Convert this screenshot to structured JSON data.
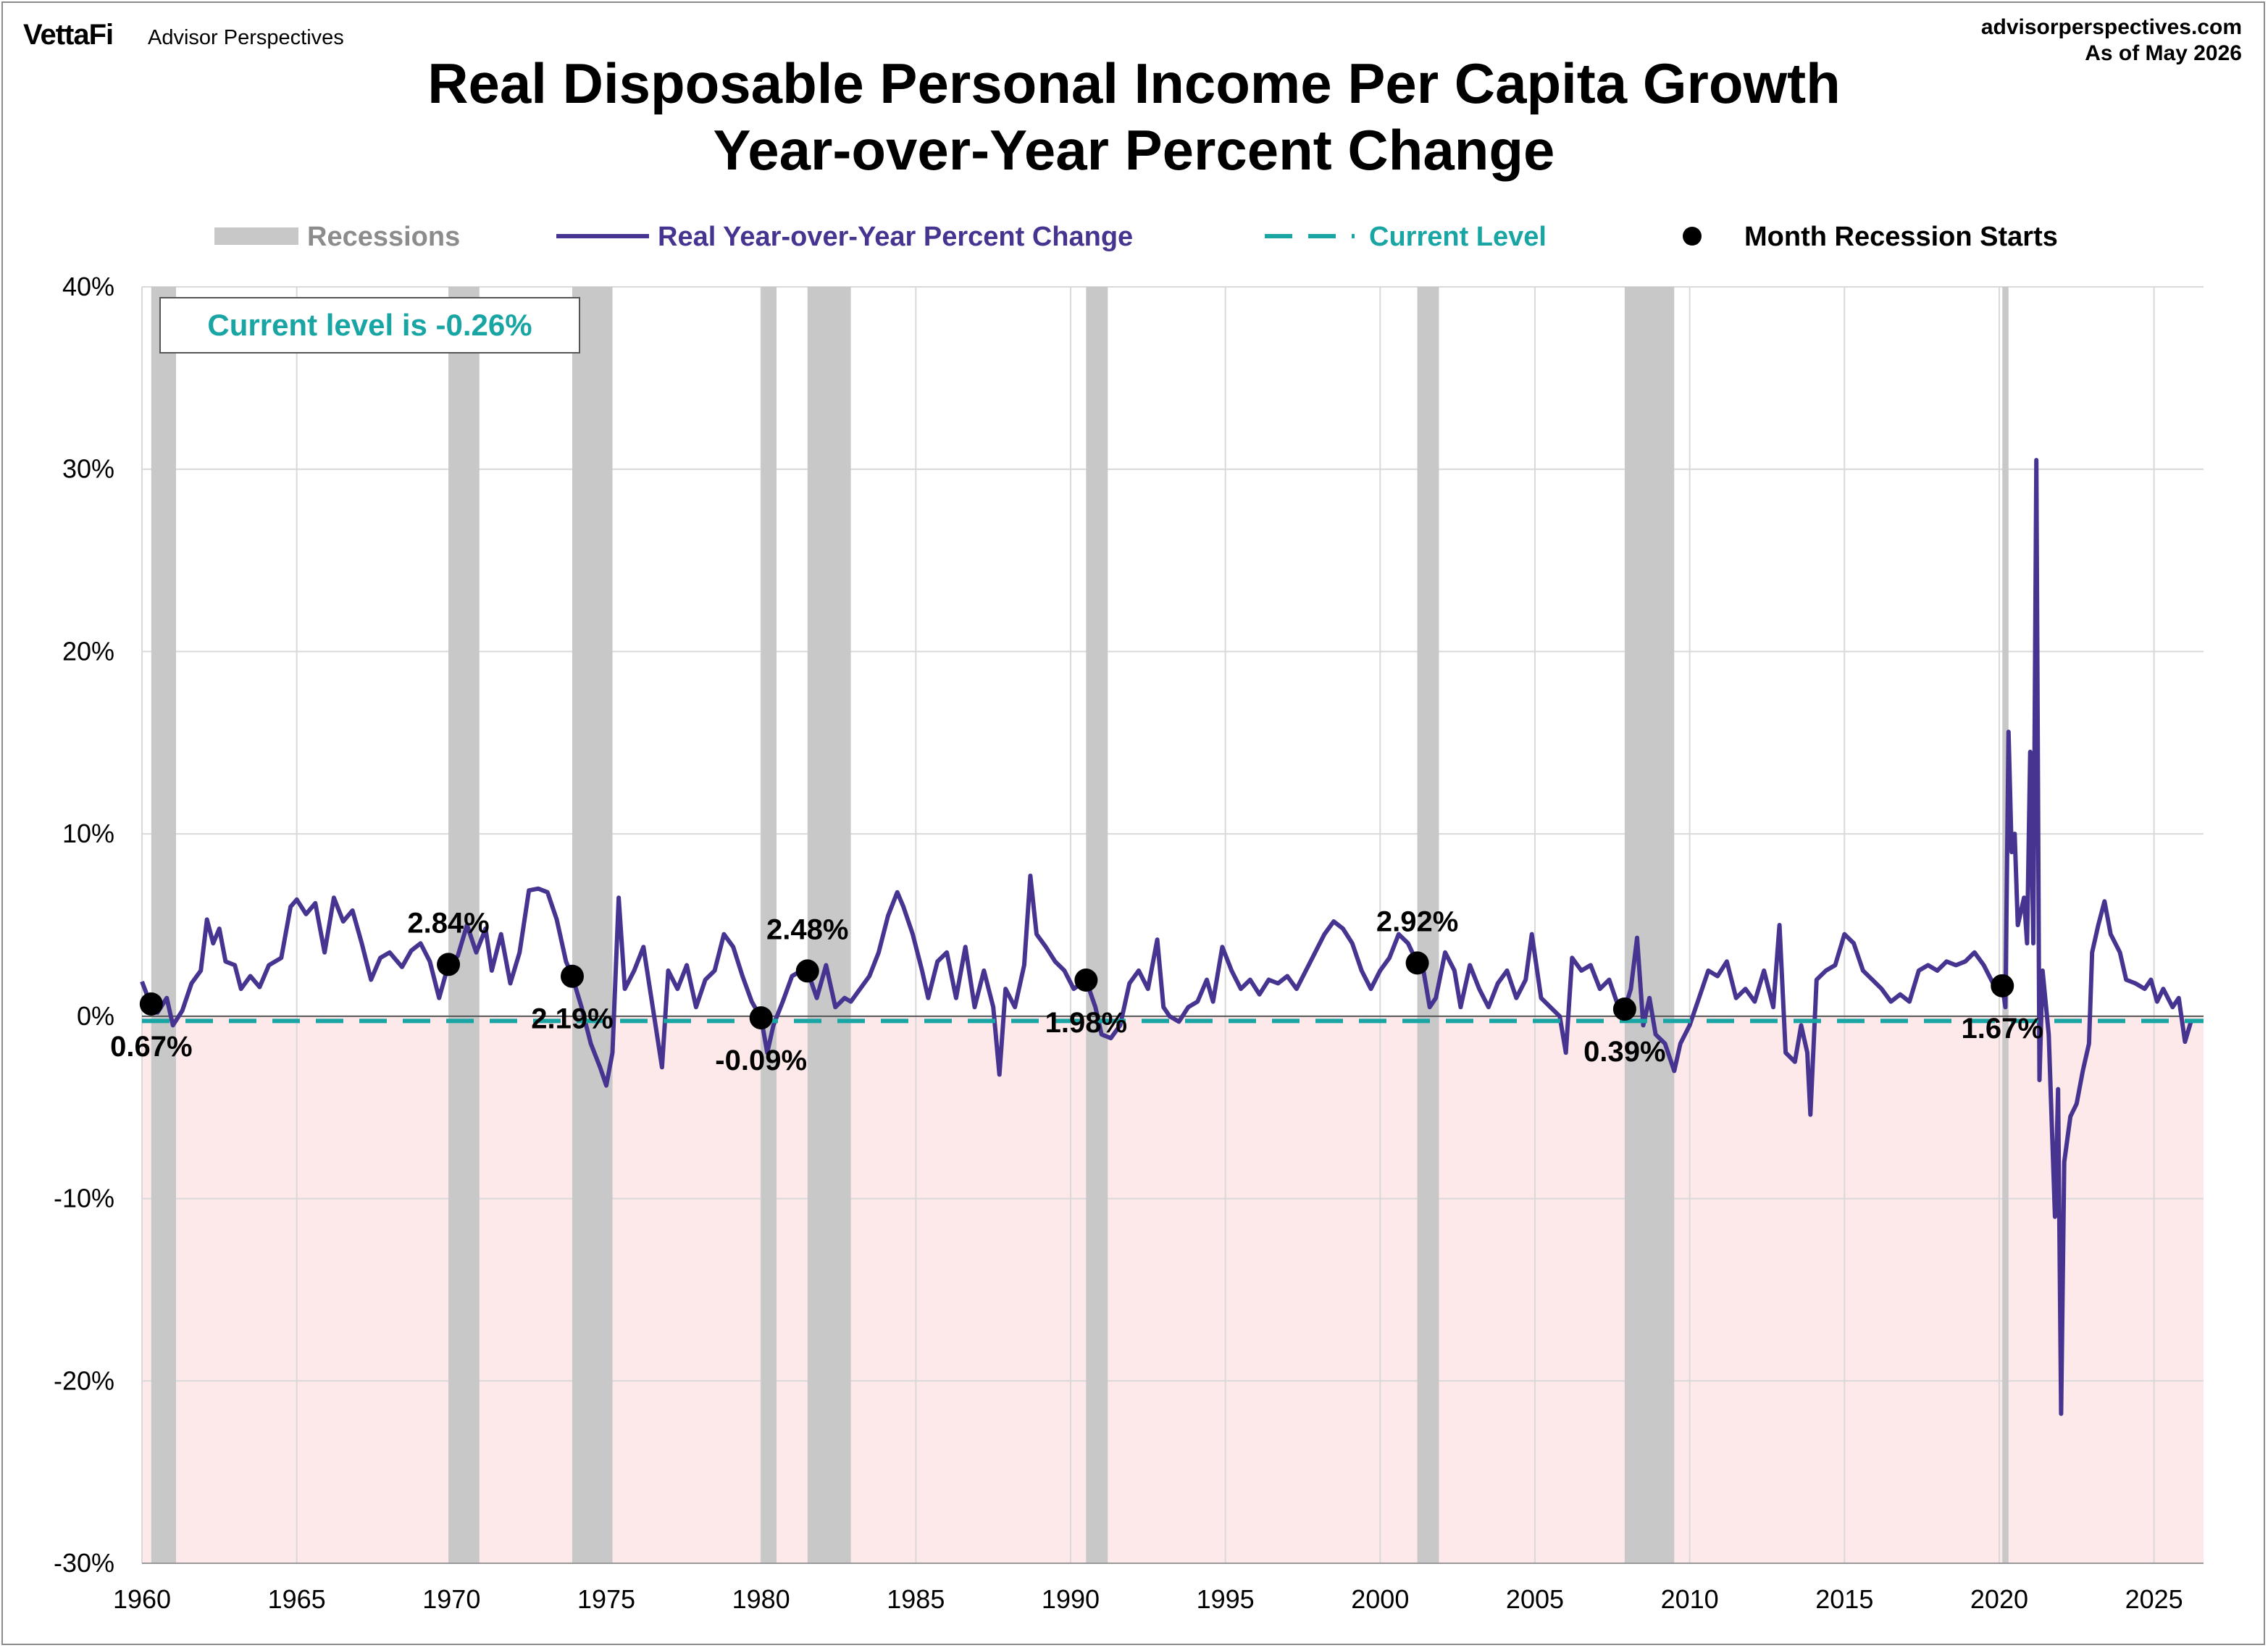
{
  "header": {
    "logo": "VettaFi",
    "logo_sub": "Advisor Perspectives",
    "site": "advisorperspectives.com",
    "as_of": "As of May 2026",
    "title_line1": "Real Disposable Personal Income Per Capita Growth",
    "title_line2": "Year-over-Year Percent Change"
  },
  "note": "Current level is -0.26%",
  "colors": {
    "series": "#473491",
    "current": "#1aa5a5",
    "recession": "#c8c8c8",
    "negative_zone": "#fde9ea",
    "grid": "#d9d9d9"
  },
  "chart_data": {
    "type": "line",
    "title": "Real Disposable Personal Income Per Capita Growth",
    "subtitle": "Year-over-Year Percent Change",
    "xlim": [
      1960,
      2026.6
    ],
    "ylim": [
      -30,
      40
    ],
    "x_ticks": [
      1960,
      1965,
      1970,
      1975,
      1980,
      1985,
      1990,
      1995,
      2000,
      2005,
      2010,
      2015,
      2020,
      2025
    ],
    "y_ticks": [
      {
        "value": 40,
        "label": "40%"
      },
      {
        "value": 30,
        "label": "30%"
      },
      {
        "value": 20,
        "label": "20%"
      },
      {
        "value": 10,
        "label": "10%"
      },
      {
        "value": 0,
        "label": "0%"
      },
      {
        "value": -10,
        "label": "-10%"
      },
      {
        "value": -20,
        "label": "-20%"
      },
      {
        "value": -30,
        "label": "-30%"
      }
    ],
    "grid": true,
    "legend": [
      {
        "label": "Recessions",
        "kind": "bar"
      },
      {
        "label": "Real Year-over-Year Percent Change",
        "kind": "line"
      },
      {
        "label": "Current Level",
        "kind": "dash"
      },
      {
        "label": "Month Recession Starts",
        "kind": "dot"
      }
    ],
    "current_level": -0.26,
    "recessions": [
      [
        1960.3,
        1961.1
      ],
      [
        1969.9,
        1970.9
      ],
      [
        1973.9,
        1975.2
      ],
      [
        1980.0,
        1980.5
      ],
      [
        1981.5,
        1982.9
      ],
      [
        1990.5,
        1991.2
      ],
      [
        2001.2,
        2001.9
      ],
      [
        2007.9,
        2009.5
      ],
      [
        2020.1,
        2020.3
      ]
    ],
    "recession_starts": [
      {
        "x": 1960.3,
        "y": 0.67,
        "label": "0.67%"
      },
      {
        "x": 1969.9,
        "y": 2.84,
        "label": "2.84%"
      },
      {
        "x": 1973.9,
        "y": 2.19,
        "label": "2.19%"
      },
      {
        "x": 1980.0,
        "y": -0.09,
        "label": "-0.09%"
      },
      {
        "x": 1981.5,
        "y": 2.48,
        "label": "2.48%"
      },
      {
        "x": 1990.5,
        "y": 1.98,
        "label": "1.98%"
      },
      {
        "x": 2001.2,
        "y": 2.92,
        "label": "2.92%"
      },
      {
        "x": 2007.9,
        "y": 0.39,
        "label": "0.39%"
      },
      {
        "x": 2020.1,
        "y": 1.67,
        "label": "1.67%"
      }
    ],
    "series": [
      {
        "name": "Real Year-over-Year Percent Change",
        "points": [
          [
            1960.0,
            1.9
          ],
          [
            1960.2,
            1.0
          ],
          [
            1960.5,
            0.2
          ],
          [
            1960.8,
            1.0
          ],
          [
            1961.0,
            -0.5
          ],
          [
            1961.3,
            0.3
          ],
          [
            1961.6,
            1.8
          ],
          [
            1961.9,
            2.5
          ],
          [
            1962.1,
            5.3
          ],
          [
            1962.3,
            4.0
          ],
          [
            1962.5,
            4.8
          ],
          [
            1962.7,
            3.0
          ],
          [
            1963.0,
            2.8
          ],
          [
            1963.2,
            1.5
          ],
          [
            1963.5,
            2.2
          ],
          [
            1963.8,
            1.6
          ],
          [
            1964.1,
            2.8
          ],
          [
            1964.5,
            3.2
          ],
          [
            1964.8,
            6.0
          ],
          [
            1965.0,
            6.4
          ],
          [
            1965.3,
            5.6
          ],
          [
            1965.6,
            6.2
          ],
          [
            1965.9,
            3.5
          ],
          [
            1966.2,
            6.5
          ],
          [
            1966.5,
            5.2
          ],
          [
            1966.8,
            5.8
          ],
          [
            1967.1,
            4.0
          ],
          [
            1967.4,
            2.0
          ],
          [
            1967.7,
            3.2
          ],
          [
            1968.0,
            3.5
          ],
          [
            1968.4,
            2.7
          ],
          [
            1968.7,
            3.6
          ],
          [
            1969.0,
            4.0
          ],
          [
            1969.3,
            3.0
          ],
          [
            1969.6,
            1.0
          ],
          [
            1969.9,
            2.84
          ],
          [
            1970.2,
            3.3
          ],
          [
            1970.5,
            5.0
          ],
          [
            1970.8,
            3.5
          ],
          [
            1971.1,
            4.8
          ],
          [
            1971.3,
            2.5
          ],
          [
            1971.6,
            4.5
          ],
          [
            1971.9,
            1.8
          ],
          [
            1972.2,
            3.5
          ],
          [
            1972.5,
            6.9
          ],
          [
            1972.8,
            7.0
          ],
          [
            1973.1,
            6.8
          ],
          [
            1973.4,
            5.3
          ],
          [
            1973.7,
            3.0
          ],
          [
            1973.9,
            2.19
          ],
          [
            1974.2,
            0.5
          ],
          [
            1974.5,
            -1.5
          ],
          [
            1974.8,
            -2.8
          ],
          [
            1975.0,
            -3.8
          ],
          [
            1975.2,
            -2.0
          ],
          [
            1975.4,
            6.5
          ],
          [
            1975.6,
            1.5
          ],
          [
            1975.9,
            2.5
          ],
          [
            1976.2,
            3.8
          ],
          [
            1976.5,
            0.5
          ],
          [
            1976.8,
            -2.8
          ],
          [
            1977.0,
            2.5
          ],
          [
            1977.3,
            1.5
          ],
          [
            1977.6,
            2.8
          ],
          [
            1977.9,
            0.5
          ],
          [
            1978.2,
            2.0
          ],
          [
            1978.5,
            2.5
          ],
          [
            1978.8,
            4.5
          ],
          [
            1979.1,
            3.8
          ],
          [
            1979.4,
            2.2
          ],
          [
            1979.7,
            0.8
          ],
          [
            1980.0,
            -0.09
          ],
          [
            1980.2,
            -2.0
          ],
          [
            1980.4,
            -0.5
          ],
          [
            1980.7,
            0.8
          ],
          [
            1981.0,
            2.2
          ],
          [
            1981.3,
            2.5
          ],
          [
            1981.5,
            2.48
          ],
          [
            1981.8,
            1.0
          ],
          [
            1982.1,
            2.8
          ],
          [
            1982.4,
            0.5
          ],
          [
            1982.7,
            1.0
          ],
          [
            1982.9,
            0.8
          ],
          [
            1983.2,
            1.5
          ],
          [
            1983.5,
            2.2
          ],
          [
            1983.8,
            3.5
          ],
          [
            1984.1,
            5.5
          ],
          [
            1984.4,
            6.8
          ],
          [
            1984.6,
            6.0
          ],
          [
            1984.9,
            4.5
          ],
          [
            1985.2,
            2.5
          ],
          [
            1985.4,
            1.0
          ],
          [
            1985.7,
            3.0
          ],
          [
            1986.0,
            3.5
          ],
          [
            1986.3,
            1.0
          ],
          [
            1986.6,
            3.8
          ],
          [
            1986.9,
            0.5
          ],
          [
            1987.2,
            2.5
          ],
          [
            1987.5,
            0.5
          ],
          [
            1987.7,
            -3.2
          ],
          [
            1987.9,
            1.5
          ],
          [
            1988.2,
            0.5
          ],
          [
            1988.5,
            2.8
          ],
          [
            1988.7,
            7.7
          ],
          [
            1988.9,
            4.5
          ],
          [
            1989.2,
            3.8
          ],
          [
            1989.5,
            3.0
          ],
          [
            1989.8,
            2.5
          ],
          [
            1990.1,
            1.5
          ],
          [
            1990.5,
            1.98
          ],
          [
            1990.8,
            0.5
          ],
          [
            1991.0,
            -1.0
          ],
          [
            1991.3,
            -1.2
          ],
          [
            1991.6,
            -0.5
          ],
          [
            1991.9,
            1.8
          ],
          [
            1992.2,
            2.5
          ],
          [
            1992.5,
            1.5
          ],
          [
            1992.8,
            4.2
          ],
          [
            1993.0,
            0.5
          ],
          [
            1993.2,
            0.0
          ],
          [
            1993.5,
            -0.3
          ],
          [
            1993.8,
            0.5
          ],
          [
            1994.1,
            0.8
          ],
          [
            1994.4,
            2.0
          ],
          [
            1994.6,
            0.8
          ],
          [
            1994.9,
            3.8
          ],
          [
            1995.2,
            2.5
          ],
          [
            1995.5,
            1.5
          ],
          [
            1995.8,
            2.0
          ],
          [
            1996.1,
            1.2
          ],
          [
            1996.4,
            2.0
          ],
          [
            1996.7,
            1.8
          ],
          [
            1997.0,
            2.2
          ],
          [
            1997.3,
            1.5
          ],
          [
            1997.6,
            2.5
          ],
          [
            1997.9,
            3.5
          ],
          [
            1998.2,
            4.5
          ],
          [
            1998.5,
            5.2
          ],
          [
            1998.8,
            4.8
          ],
          [
            1999.1,
            4.0
          ],
          [
            1999.4,
            2.5
          ],
          [
            1999.7,
            1.5
          ],
          [
            2000.0,
            2.5
          ],
          [
            2000.3,
            3.2
          ],
          [
            2000.6,
            4.5
          ],
          [
            2000.9,
            4.0
          ],
          [
            2001.2,
            2.92
          ],
          [
            2001.4,
            2.5
          ],
          [
            2001.6,
            0.5
          ],
          [
            2001.8,
            1.0
          ],
          [
            2002.1,
            3.5
          ],
          [
            2002.4,
            2.5
          ],
          [
            2002.6,
            0.5
          ],
          [
            2002.9,
            2.8
          ],
          [
            2003.2,
            1.5
          ],
          [
            2003.5,
            0.5
          ],
          [
            2003.8,
            1.8
          ],
          [
            2004.1,
            2.5
          ],
          [
            2004.4,
            1.0
          ],
          [
            2004.7,
            2.0
          ],
          [
            2004.9,
            4.5
          ],
          [
            2005.2,
            1.0
          ],
          [
            2005.5,
            0.5
          ],
          [
            2005.8,
            0.0
          ],
          [
            2006.0,
            -2.0
          ],
          [
            2006.2,
            3.2
          ],
          [
            2006.5,
            2.5
          ],
          [
            2006.8,
            2.8
          ],
          [
            2007.1,
            1.5
          ],
          [
            2007.4,
            2.0
          ],
          [
            2007.7,
            0.5
          ],
          [
            2007.9,
            0.39
          ],
          [
            2008.1,
            1.5
          ],
          [
            2008.3,
            4.3
          ],
          [
            2008.5,
            -0.5
          ],
          [
            2008.7,
            1.0
          ],
          [
            2008.9,
            -1.0
          ],
          [
            2009.2,
            -1.5
          ],
          [
            2009.5,
            -3.0
          ],
          [
            2009.7,
            -1.5
          ],
          [
            2010.0,
            -0.5
          ],
          [
            2010.3,
            1.0
          ],
          [
            2010.6,
            2.5
          ],
          [
            2010.9,
            2.2
          ],
          [
            2011.2,
            3.0
          ],
          [
            2011.5,
            1.0
          ],
          [
            2011.8,
            1.5
          ],
          [
            2012.1,
            0.8
          ],
          [
            2012.4,
            2.5
          ],
          [
            2012.7,
            0.5
          ],
          [
            2012.9,
            5.0
          ],
          [
            2013.1,
            -2.0
          ],
          [
            2013.4,
            -2.5
          ],
          [
            2013.6,
            -0.5
          ],
          [
            2013.8,
            -2.0
          ],
          [
            2013.9,
            -5.4
          ],
          [
            2014.1,
            2.0
          ],
          [
            2014.4,
            2.5
          ],
          [
            2014.7,
            2.8
          ],
          [
            2015.0,
            4.5
          ],
          [
            2015.3,
            4.0
          ],
          [
            2015.6,
            2.5
          ],
          [
            2015.9,
            2.0
          ],
          [
            2016.2,
            1.5
          ],
          [
            2016.5,
            0.8
          ],
          [
            2016.8,
            1.2
          ],
          [
            2017.1,
            0.8
          ],
          [
            2017.4,
            2.5
          ],
          [
            2017.7,
            2.8
          ],
          [
            2018.0,
            2.5
          ],
          [
            2018.3,
            3.0
          ],
          [
            2018.6,
            2.8
          ],
          [
            2018.9,
            3.0
          ],
          [
            2019.2,
            3.5
          ],
          [
            2019.5,
            2.8
          ],
          [
            2019.8,
            1.8
          ],
          [
            2020.1,
            1.67
          ],
          [
            2020.2,
            0.5
          ],
          [
            2020.3,
            15.6
          ],
          [
            2020.4,
            9.0
          ],
          [
            2020.5,
            10.0
          ],
          [
            2020.6,
            5.0
          ],
          [
            2020.8,
            6.5
          ],
          [
            2020.9,
            4.0
          ],
          [
            2021.0,
            14.5
          ],
          [
            2021.1,
            4.0
          ],
          [
            2021.2,
            30.5
          ],
          [
            2021.3,
            -3.5
          ],
          [
            2021.4,
            2.5
          ],
          [
            2021.6,
            -1.0
          ],
          [
            2021.8,
            -11.0
          ],
          [
            2021.9,
            -4.0
          ],
          [
            2022.0,
            -21.8
          ],
          [
            2022.1,
            -8.0
          ],
          [
            2022.3,
            -5.5
          ],
          [
            2022.5,
            -4.8
          ],
          [
            2022.7,
            -3.0
          ],
          [
            2022.9,
            -1.5
          ],
          [
            2023.0,
            3.5
          ],
          [
            2023.2,
            5.0
          ],
          [
            2023.4,
            6.3
          ],
          [
            2023.6,
            4.5
          ],
          [
            2023.9,
            3.5
          ],
          [
            2024.1,
            2.0
          ],
          [
            2024.4,
            1.8
          ],
          [
            2024.7,
            1.5
          ],
          [
            2024.9,
            2.0
          ],
          [
            2025.1,
            0.8
          ],
          [
            2025.3,
            1.5
          ],
          [
            2025.6,
            0.5
          ],
          [
            2025.8,
            1.0
          ],
          [
            2026.0,
            -1.4
          ],
          [
            2026.2,
            -0.26
          ]
        ]
      }
    ]
  }
}
